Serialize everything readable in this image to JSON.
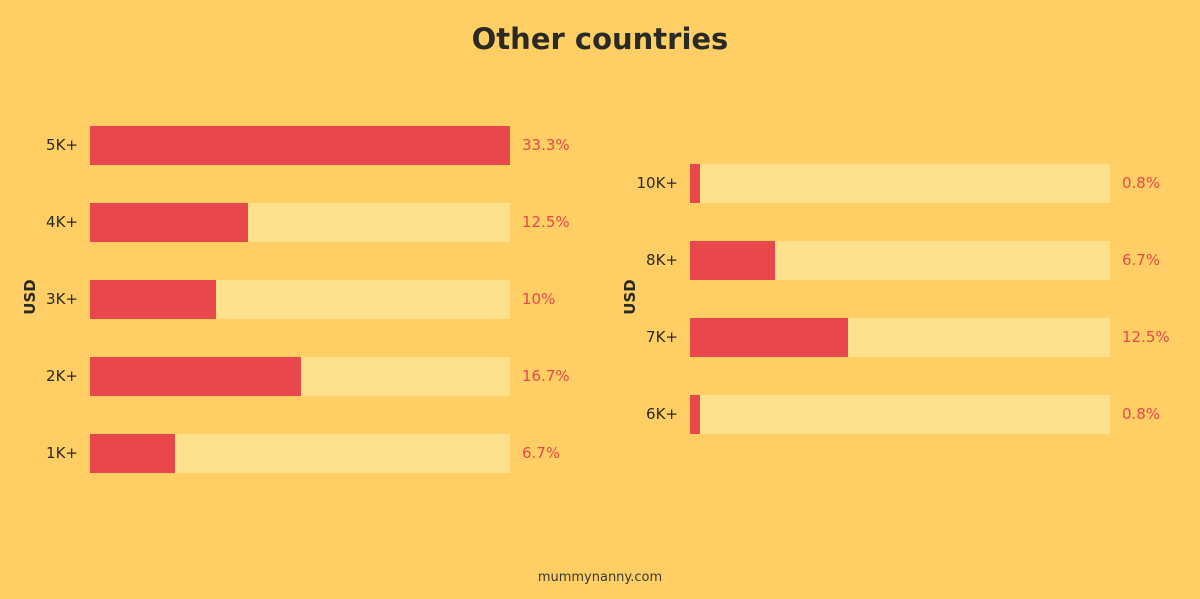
{
  "title": "Other countries",
  "footer": "mummynanny.com",
  "colors": {
    "background": "#FFCF65",
    "bar": "#E8484A",
    "track": "#FCE08C",
    "value_text": "#E8484A"
  },
  "chart_data": [
    {
      "type": "bar",
      "orientation": "horizontal",
      "ylabel": "USD",
      "categories": [
        "5K+",
        "4K+",
        "3K+",
        "2K+",
        "1K+"
      ],
      "values": [
        33.3,
        12.5,
        10,
        16.7,
        6.7
      ],
      "value_labels": [
        "33.3%",
        "12.5%",
        "10%",
        "16.7%",
        "6.7%"
      ],
      "xlim": [
        0,
        33.3
      ]
    },
    {
      "type": "bar",
      "orientation": "horizontal",
      "ylabel": "USD",
      "categories": [
        "10K+",
        "8K+",
        "7K+",
        "6K+"
      ],
      "values": [
        0.8,
        6.7,
        12.5,
        0.8
      ],
      "value_labels": [
        "0.8%",
        "6.7%",
        "12.5%",
        "0.8%"
      ],
      "xlim": [
        0,
        33.3
      ]
    }
  ]
}
